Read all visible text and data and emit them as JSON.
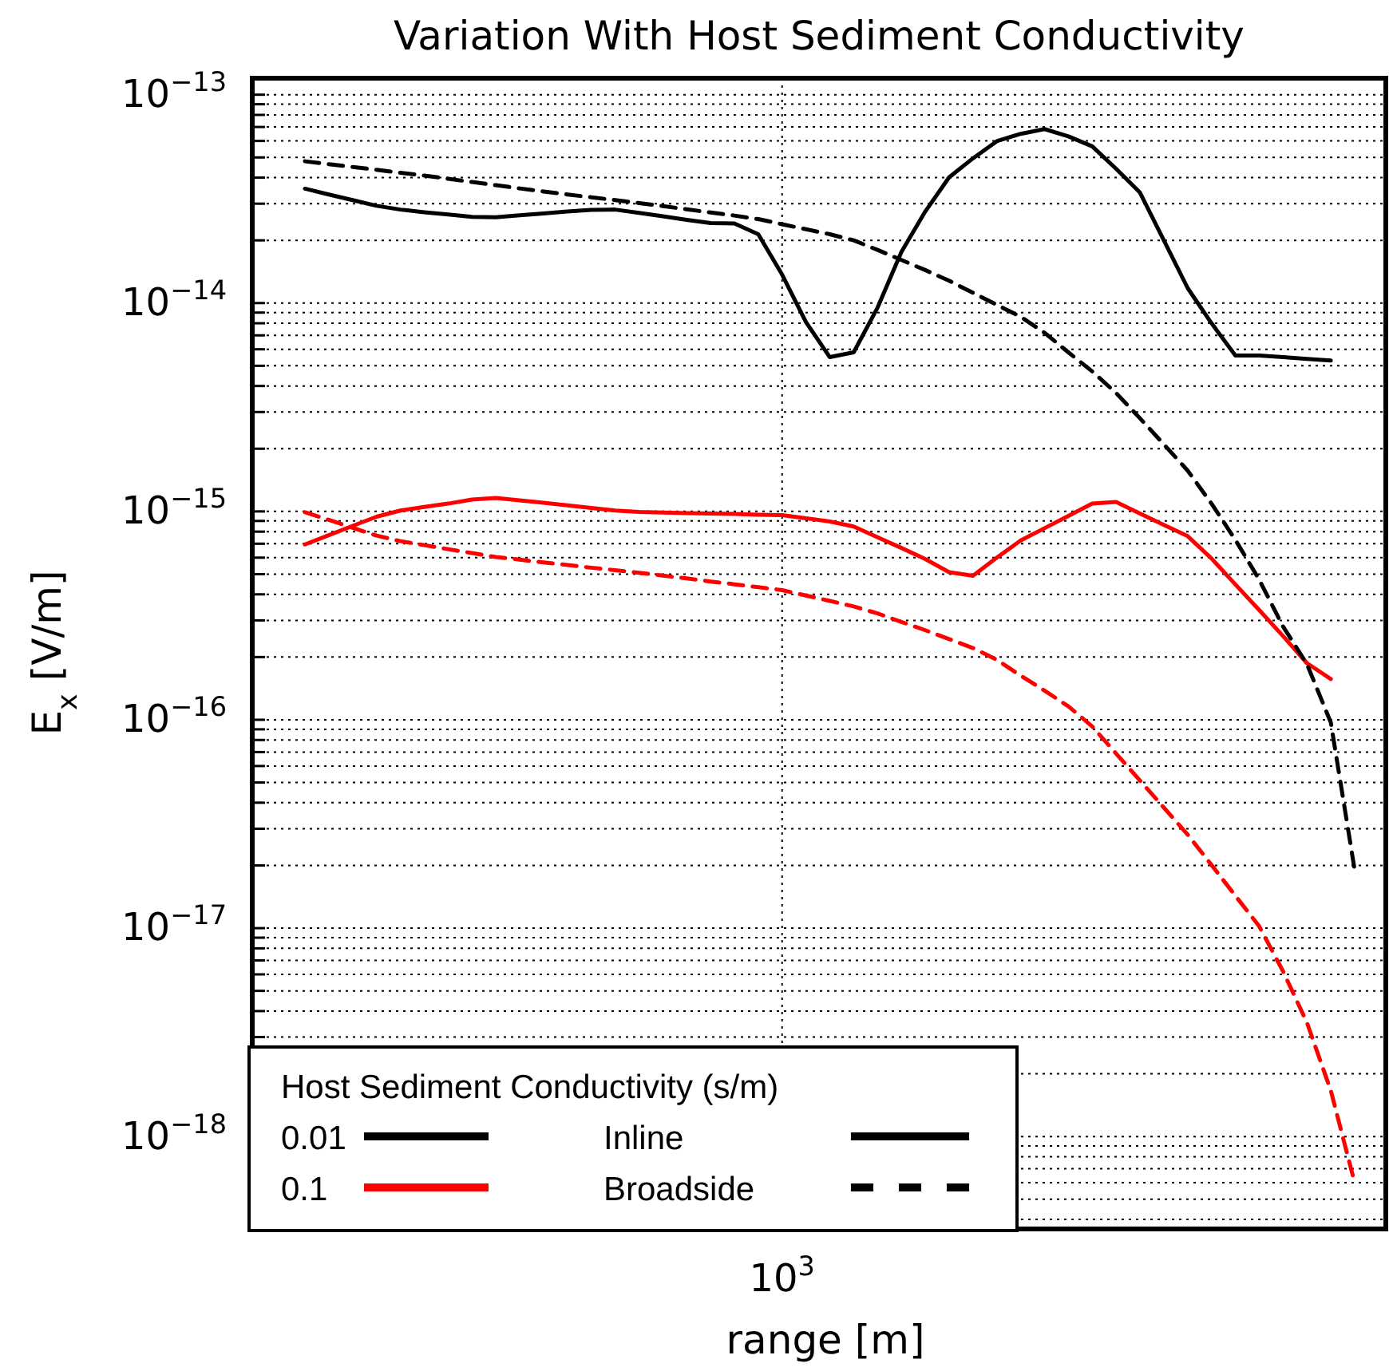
{
  "chart_data": {
    "type": "line",
    "title": "Variation With Host Sediment Conductivity",
    "xlabel": "range [m]",
    "ylabel": "E$_{x}$ [V/m]",
    "legend_title": "Host Sediment Conductivity (s/m)",
    "log": "y",
    "grid": true,
    "legend": "bottom left",
    "marker": "none",
    "annotations": [
      "Inline",
      "Broadside"
    ],
    "categories": [
      null,
      null,
      null,
      null,
      null,
      null,
      null,
      null,
      null,
      null,
      null,
      null,
      null,
      null,
      null,
      null,
      null,
      null,
      null,
      null,
      "10$^{3}$",
      null,
      null,
      null,
      null,
      null,
      null,
      null,
      null,
      null,
      null,
      null,
      null,
      null,
      null,
      null,
      null,
      null,
      null,
      null,
      null,
      null,
      null,
      null,
      null
    ],
    "ylim": [
      3.6e-19,
      1.2e-13
    ],
    "yticks": [
      {
        "value": 4e-19,
        "label": null
      },
      {
        "value": 5e-19,
        "label": null
      },
      {
        "value": 6e-19,
        "label": null
      },
      {
        "value": 7e-19,
        "label": null
      },
      {
        "value": 8e-19,
        "label": null
      },
      {
        "value": 9e-19,
        "label": null
      },
      {
        "value": 1e-18,
        "label": "10$^{−18}$"
      },
      {
        "value": 2e-18,
        "label": null
      },
      {
        "value": 3e-18,
        "label": null
      },
      {
        "value": 4e-18,
        "label": null
      },
      {
        "value": 5e-18,
        "label": null
      },
      {
        "value": 6e-18,
        "label": null
      },
      {
        "value": 7e-18,
        "label": null
      },
      {
        "value": 8e-18,
        "label": null
      },
      {
        "value": 9e-18,
        "label": null
      },
      {
        "value": 1e-17,
        "label": "10$^{−17}$"
      },
      {
        "value": 2e-17,
        "label": null
      },
      {
        "value": 3e-17,
        "label": null
      },
      {
        "value": 4e-17,
        "label": null
      },
      {
        "value": 5e-17,
        "label": null
      },
      {
        "value": 6e-17,
        "label": null
      },
      {
        "value": 7e-17,
        "label": null
      },
      {
        "value": 8e-17,
        "label": null
      },
      {
        "value": 9e-17,
        "label": null
      },
      {
        "value": 1e-16,
        "label": "10$^{−16}$"
      },
      {
        "value": 2e-16,
        "label": null
      },
      {
        "value": 3e-16,
        "label": null
      },
      {
        "value": 4e-16,
        "label": null
      },
      {
        "value": 5e-16,
        "label": null
      },
      {
        "value": 6e-16,
        "label": null
      },
      {
        "value": 7e-16,
        "label": null
      },
      {
        "value": 8e-16,
        "label": null
      },
      {
        "value": 9e-16,
        "label": null
      },
      {
        "value": 1e-15,
        "label": "10$^{−15}$"
      },
      {
        "value": 2e-15,
        "label": null
      },
      {
        "value": 3e-15,
        "label": null
      },
      {
        "value": 4e-15,
        "label": null
      },
      {
        "value": 5e-15,
        "label": null
      },
      {
        "value": 6e-15,
        "label": null
      },
      {
        "value": 7e-15,
        "label": null
      },
      {
        "value": 8e-15,
        "label": null
      },
      {
        "value": 9e-15,
        "label": null
      },
      {
        "value": 1e-14,
        "label": "10$^{−14}$"
      },
      {
        "value": 2e-14,
        "label": null
      },
      {
        "value": 3e-14,
        "label": null
      },
      {
        "value": 4e-14,
        "label": null
      },
      {
        "value": 5e-14,
        "label": null
      },
      {
        "value": 6e-14,
        "label": null
      },
      {
        "value": 7e-14,
        "label": null
      },
      {
        "value": 8e-14,
        "label": null
      },
      {
        "value": 9e-14,
        "label": null
      },
      {
        "value": 1e-13,
        "label": "10$^{−13}$"
      }
    ],
    "series": [
      {
        "name": "0.01",
        "color": "#000000",
        "line_style": "solid",
        "values": [
          3.54e-14,
          3.32e-14,
          3.12e-14,
          2.93e-14,
          2.81e-14,
          2.73e-14,
          2.66e-14,
          2.59e-14,
          2.58e-14,
          2.64e-14,
          2.69e-14,
          2.75e-14,
          2.8e-14,
          2.81e-14,
          2.71e-14,
          2.61e-14,
          2.51e-14,
          2.42e-14,
          2.41e-14,
          2.14e-14,
          1.37e-14,
          8.1e-15,
          5.5e-15,
          5.8e-15,
          9.5e-15,
          1.76e-14,
          2.75e-14,
          4.01e-14,
          4.95e-14,
          5.98e-14,
          6.49e-14,
          6.84e-14,
          6.31e-14,
          5.65e-14,
          4.41e-14,
          3.39e-14,
          2e-14,
          1.18e-14,
          8e-15,
          5.6e-15,
          5.6e-15,
          5.5e-15,
          5.4e-15,
          5.3e-15,
          null
        ]
      },
      {
        "name": "0.1",
        "color": "#ff0000",
        "line_style": "solid",
        "values": [
          6.94e-16,
          7.69e-16,
          8.52e-16,
          9.43e-16,
          1.01e-15,
          1.05e-15,
          1.09e-15,
          1.14e-15,
          1.16e-15,
          1.13e-15,
          1.1e-15,
          1.07e-15,
          1.04e-15,
          1.01e-15,
          9.95e-16,
          9.88e-16,
          9.82e-16,
          9.77e-16,
          9.72e-16,
          9.65e-16,
          9.6e-16,
          9.27e-16,
          8.95e-16,
          8.47e-16,
          7.51e-16,
          6.68e-16,
          5.91e-16,
          5.11e-16,
          4.91e-16,
          6e-16,
          7.25e-16,
          8.31e-16,
          9.52e-16,
          1.09e-15,
          1.11e-15,
          9.77e-16,
          8.62e-16,
          7.61e-16,
          5.94e-16,
          4.46e-16,
          3.36e-16,
          2.52e-16,
          1.87e-16,
          1.57e-16,
          null
        ]
      },
      {
        "color": "#000000",
        "line_style": "dashed",
        "values": [
          4.79e-14,
          4.64e-14,
          4.5e-14,
          4.36e-14,
          4.22e-14,
          4.09e-14,
          3.95e-14,
          3.81e-14,
          3.68e-14,
          3.55e-14,
          3.43e-14,
          3.32e-14,
          3.22e-14,
          3.12e-14,
          3.02e-14,
          2.92e-14,
          2.82e-14,
          2.72e-14,
          2.63e-14,
          2.53e-14,
          2.39e-14,
          2.26e-14,
          2.14e-14,
          2e-14,
          1.8e-14,
          1.61e-14,
          1.44e-14,
          1.28e-14,
          1.12e-14,
          9.8e-15,
          8.6e-15,
          7.2e-15,
          5.8e-15,
          4.7e-15,
          3.7e-15,
          2.8e-15,
          2.1e-15,
          1.57e-15,
          1.09e-15,
          7.3e-16,
          4.7e-16,
          2.8e-16,
          1.85e-16,
          9.7e-17,
          1.9e-17
        ]
      },
      {
        "color": "#ff0000",
        "line_style": "dashed",
        "values": [
          9.91e-16,
          9.11e-16,
          8.35e-16,
          7.66e-16,
          7.2e-16,
          6.89e-16,
          6.59e-16,
          6.31e-16,
          6.04e-16,
          5.87e-16,
          5.69e-16,
          5.53e-16,
          5.37e-16,
          5.22e-16,
          5.08e-16,
          4.92e-16,
          4.77e-16,
          4.61e-16,
          4.47e-16,
          4.33e-16,
          4.19e-16,
          3.95e-16,
          3.72e-16,
          3.5e-16,
          3.24e-16,
          2.95e-16,
          2.69e-16,
          2.44e-16,
          2.21e-16,
          1.94e-16,
          1.63e-16,
          1.38e-16,
          1.16e-16,
          9.29e-17,
          6.88e-17,
          5.11e-17,
          3.79e-17,
          2.81e-17,
          2.01e-17,
          1.43e-17,
          1.02e-17,
          6.2e-18,
          3.52e-18,
          1.66e-18,
          6e-19
        ]
      }
    ]
  }
}
